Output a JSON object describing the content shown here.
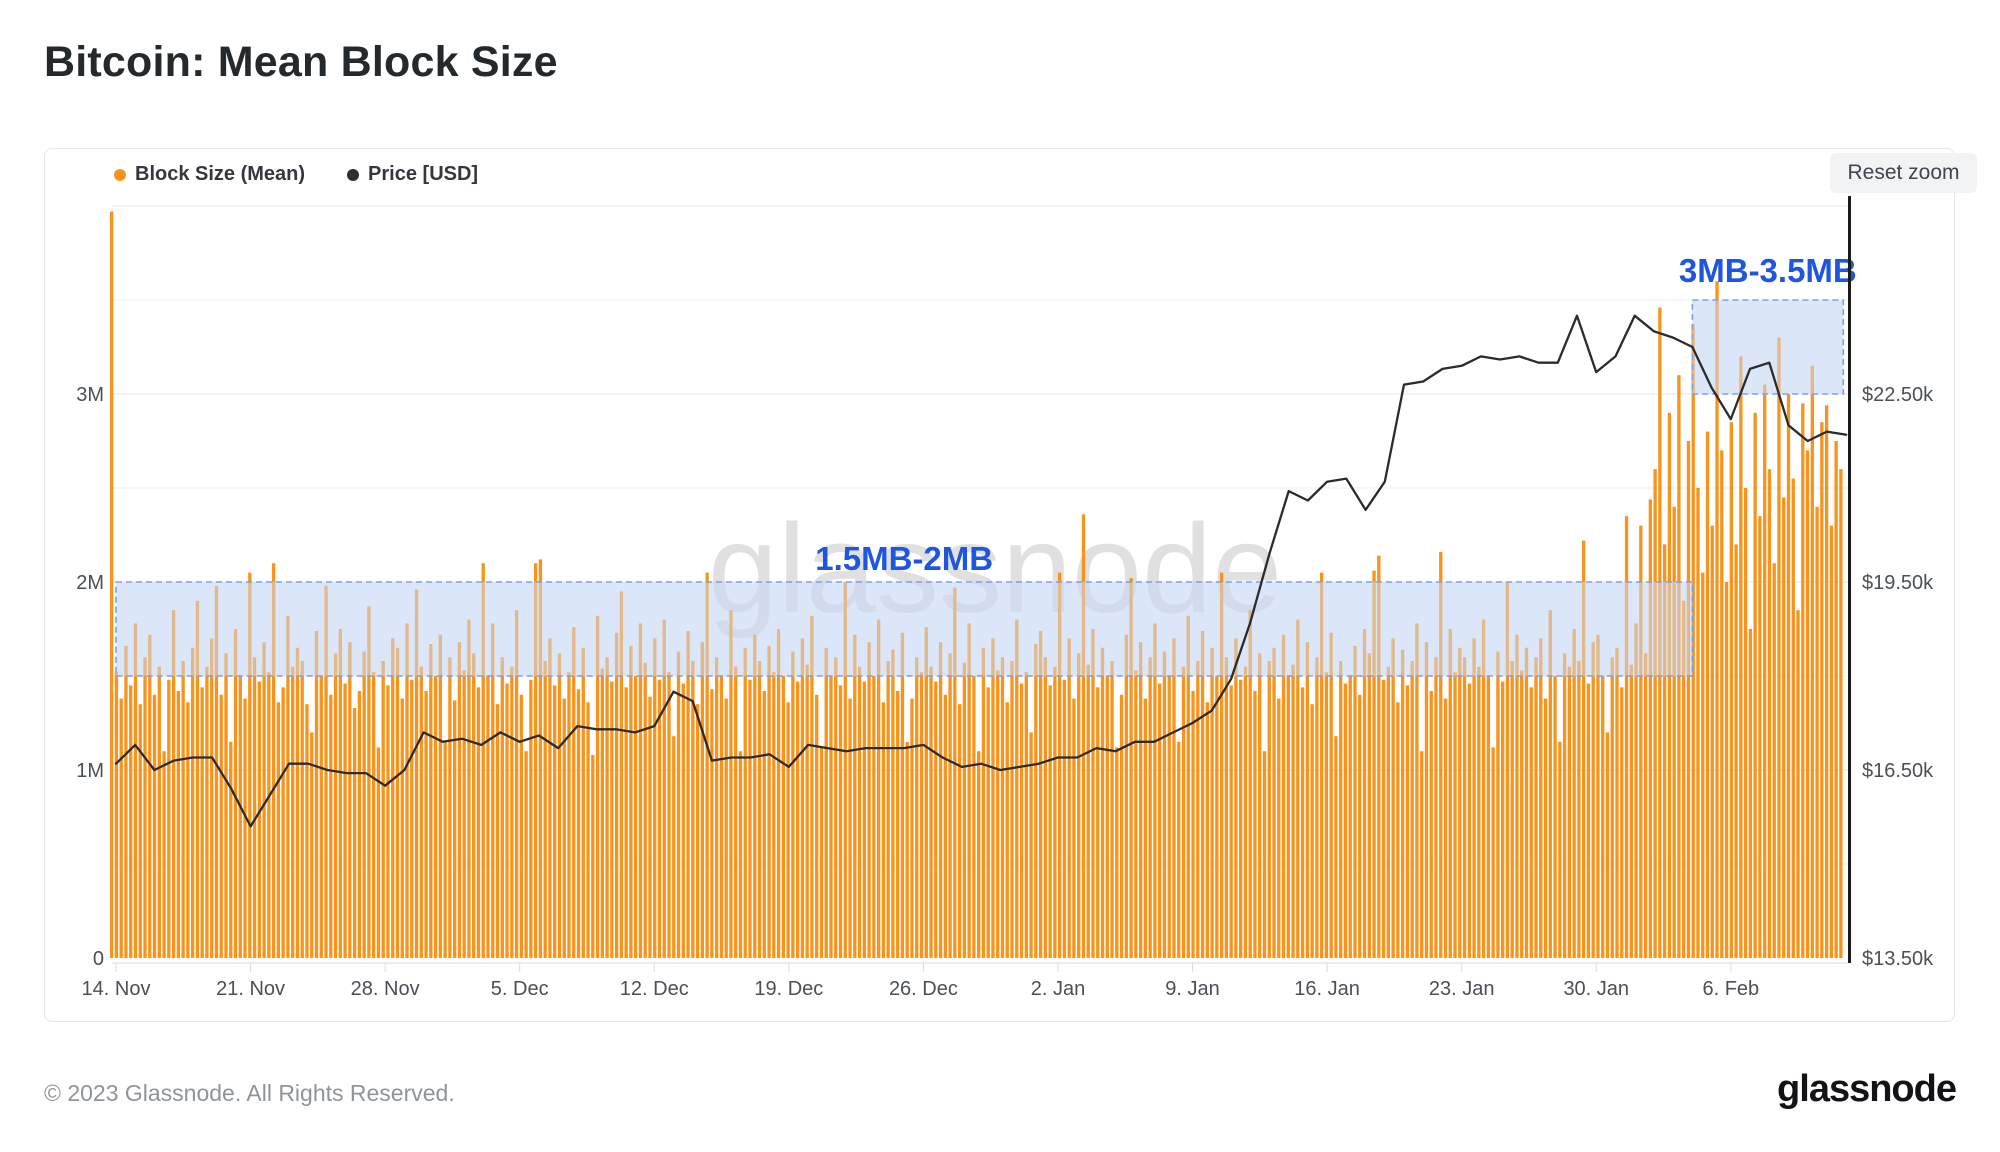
{
  "page": {
    "title": "Bitcoin: Mean Block Size",
    "footer_copyright": "© 2023 Glassnode. All Rights Reserved.",
    "footer_logo": "glassnode"
  },
  "panel": {
    "reset_button_label": "Reset zoom",
    "watermark": "glassnode",
    "legend": [
      {
        "label": "Block Size (Mean)",
        "color": "#f7941e"
      },
      {
        "label": "Price [USD]",
        "color": "#2f2f2f"
      }
    ]
  },
  "chart_data": {
    "type": "mixed",
    "title": "Bitcoin: Mean Block Size",
    "x_range": {
      "start": "14. Nov",
      "end": "12. Feb",
      "days": 91
    },
    "x_ticks": [
      {
        "label": "14. Nov",
        "day": 0
      },
      {
        "label": "21. Nov",
        "day": 7
      },
      {
        "label": "28. Nov",
        "day": 14
      },
      {
        "label": "5. Dec",
        "day": 21
      },
      {
        "label": "12. Dec",
        "day": 28
      },
      {
        "label": "19. Dec",
        "day": 35
      },
      {
        "label": "26. Dec",
        "day": 42
      },
      {
        "label": "2. Jan",
        "day": 49
      },
      {
        "label": "9. Jan",
        "day": 56
      },
      {
        "label": "16. Jan",
        "day": 63
      },
      {
        "label": "23. Jan",
        "day": 70
      },
      {
        "label": "30. Jan",
        "day": 77
      },
      {
        "label": "6. Feb",
        "day": 84
      }
    ],
    "y_left": {
      "unit": "MB",
      "ticks": [
        {
          "label": "0",
          "value": 0
        },
        {
          "label": "1M",
          "value": 1
        },
        {
          "label": "2M",
          "value": 2
        },
        {
          "label": "3M",
          "value": 3
        }
      ],
      "max": 4,
      "gridline_step": 0.5
    },
    "y_right": {
      "unit": "USD",
      "ticks": [
        {
          "label": "$13.50k",
          "value": 13.5
        },
        {
          "label": "$16.50k",
          "value": 16.5
        },
        {
          "label": "$19.50k",
          "value": 19.5
        },
        {
          "label": "$22.50k",
          "value": 22.5
        }
      ],
      "min": 13.5,
      "max": 25.5
    },
    "annotations": [
      {
        "label": "1.5MB-2MB",
        "mb_from": 1.5,
        "mb_to": 2.0,
        "day_from": 0,
        "day_to": 82,
        "fill_under": "#e8eefb",
        "fill_over": "rgba(205,222,248,0.5)",
        "border": "#7aa0ee",
        "label_color": "#1e56e0"
      },
      {
        "label": "3MB-3.5MB",
        "mb_from": 3.0,
        "mb_to": 3.5,
        "day_from": 82,
        "day_to": 89.85,
        "fill_under": "#e8eefb",
        "fill_over": "rgba(205,222,248,0.5)",
        "border": "#7aa0ee",
        "label_color": "#1e56e0"
      }
    ],
    "series": [
      {
        "name": "Block Size (Mean)",
        "type": "column",
        "axis": "left",
        "unit": "MB",
        "color": "#f7941e",
        "samples_per_day": 4,
        "values": [
          3.97,
          1.52,
          1.38,
          1.66,
          1.45,
          1.78,
          1.35,
          1.6,
          1.72,
          1.4,
          1.55,
          1.1,
          1.48,
          1.85,
          1.42,
          1.58,
          1.36,
          1.65,
          1.9,
          1.44,
          1.55,
          1.7,
          1.98,
          1.4,
          1.62,
          1.15,
          1.75,
          1.5,
          1.38,
          2.05,
          1.6,
          1.47,
          1.68,
          1.52,
          2.1,
          1.36,
          1.44,
          1.82,
          1.55,
          1.65,
          1.58,
          1.35,
          1.2,
          1.74,
          1.5,
          1.98,
          1.4,
          1.62,
          1.75,
          1.46,
          1.68,
          1.33,
          1.42,
          1.63,
          1.87,
          1.52,
          1.12,
          1.58,
          1.45,
          1.7,
          1.65,
          1.38,
          1.78,
          1.48,
          1.96,
          1.55,
          1.42,
          1.67,
          1.5,
          1.72,
          1.15,
          1.6,
          1.37,
          1.68,
          1.53,
          1.8,
          1.62,
          1.44,
          2.1,
          1.5,
          1.78,
          1.35,
          1.6,
          1.46,
          1.55,
          1.85,
          1.4,
          1.1,
          1.48,
          2.1,
          2.12,
          1.58,
          1.7,
          1.45,
          1.62,
          1.38,
          1.52,
          1.76,
          1.43,
          1.65,
          1.36,
          1.08,
          1.82,
          1.54,
          1.6,
          1.47,
          1.73,
          1.95,
          1.44,
          1.66,
          1.5,
          1.78,
          1.57,
          1.39,
          1.7,
          1.48,
          1.8,
          1.52,
          1.18,
          1.63,
          1.46,
          1.74,
          1.58,
          1.35,
          1.68,
          2.05,
          1.43,
          1.6,
          1.5,
          1.38,
          1.85,
          1.55,
          1.1,
          1.65,
          1.48,
          1.72,
          1.58,
          1.42,
          1.66,
          1.52,
          1.75,
          1.5,
          1.36,
          1.63,
          1.47,
          1.7,
          1.56,
          1.82,
          1.4,
          1.12,
          1.65,
          1.5,
          1.6,
          1.45,
          2.0,
          1.38,
          1.72,
          1.55,
          1.47,
          1.68,
          1.5,
          1.8,
          1.36,
          1.58,
          1.64,
          1.42,
          1.73,
          1.15,
          1.38,
          1.6,
          1.52,
          1.76,
          1.55,
          1.47,
          1.68,
          1.4,
          1.62,
          1.97,
          1.35,
          1.57,
          1.78,
          1.5,
          1.1,
          1.65,
          1.44,
          1.7,
          1.53,
          1.6,
          1.36,
          1.58,
          1.8,
          1.46,
          1.52,
          1.2,
          1.67,
          1.74,
          1.6,
          1.45,
          1.55,
          2.05,
          1.48,
          1.7,
          1.38,
          1.62,
          2.36,
          1.56,
          1.75,
          1.44,
          1.65,
          1.5,
          1.58,
          1.12,
          1.4,
          1.72,
          2.02,
          1.53,
          1.68,
          1.38,
          1.6,
          1.78,
          1.46,
          1.63,
          1.5,
          1.7,
          1.15,
          1.55,
          1.82,
          1.42,
          1.58,
          1.74,
          1.36,
          1.65,
          1.5,
          2.05,
          1.6,
          1.45,
          1.7,
          1.48,
          1.55,
          1.85,
          1.42,
          1.62,
          1.1,
          1.58,
          1.65,
          1.38,
          1.72,
          1.5,
          1.56,
          1.8,
          1.44,
          1.68,
          1.35,
          1.6,
          2.05,
          1.52,
          1.73,
          1.18,
          1.58,
          1.46,
          1.5,
          1.66,
          1.4,
          1.75,
          1.62,
          2.06,
          2.14,
          1.48,
          1.55,
          1.7,
          1.36,
          1.64,
          1.45,
          1.58,
          1.78,
          1.1,
          1.68,
          1.42,
          1.6,
          2.16,
          1.38,
          1.75,
          1.52,
          1.65,
          1.6,
          1.46,
          1.7,
          1.55,
          1.8,
          1.5,
          1.12,
          1.63,
          1.47,
          2.0,
          1.58,
          1.72,
          1.53,
          1.65,
          1.44,
          1.6,
          1.7,
          1.38,
          1.85,
          1.5,
          1.15,
          1.62,
          1.55,
          1.75,
          1.58,
          2.22,
          1.46,
          1.68,
          1.72,
          1.5,
          1.2,
          1.6,
          1.65,
          1.44,
          2.35,
          1.56,
          1.78,
          2.3,
          1.62,
          2.44,
          2.6,
          3.46,
          2.2,
          2.9,
          2.4,
          3.1,
          1.9,
          2.75,
          3.37,
          2.5,
          2.05,
          2.8,
          2.3,
          3.6,
          2.7,
          2.0,
          2.85,
          2.2,
          3.2,
          2.5,
          1.75,
          2.9,
          2.35,
          3.05,
          2.6,
          2.1,
          3.3,
          2.45,
          3.0,
          2.55,
          1.85,
          2.95,
          2.7,
          3.15,
          2.4,
          2.85,
          2.94,
          2.3,
          2.75,
          2.6
        ]
      },
      {
        "name": "Price [USD]",
        "type": "line",
        "axis": "right",
        "unit": "USD thousands",
        "color": "#2b2b2b",
        "samples_per_day": 1,
        "values": [
          16.6,
          16.9,
          16.5,
          16.65,
          16.7,
          16.7,
          16.2,
          15.6,
          16.1,
          16.6,
          16.6,
          16.5,
          16.45,
          16.45,
          16.25,
          16.5,
          17.1,
          16.95,
          17.0,
          16.9,
          17.1,
          16.95,
          17.05,
          16.85,
          17.2,
          17.15,
          17.15,
          17.1,
          17.2,
          17.75,
          17.6,
          16.65,
          16.7,
          16.7,
          16.75,
          16.55,
          16.9,
          16.85,
          16.8,
          16.85,
          16.85,
          16.85,
          16.9,
          16.7,
          16.55,
          16.6,
          16.5,
          16.55,
          16.6,
          16.7,
          16.7,
          16.85,
          16.8,
          16.95,
          16.95,
          17.1,
          17.25,
          17.45,
          17.95,
          18.85,
          19.95,
          20.95,
          20.8,
          21.1,
          21.15,
          20.65,
          21.1,
          22.65,
          22.7,
          22.9,
          22.95,
          23.1,
          23.05,
          23.1,
          23.0,
          23.0,
          23.75,
          22.85,
          23.1,
          23.75,
          23.5,
          23.4,
          23.25,
          22.6,
          22.1,
          22.9,
          23.0,
          22.0,
          21.75,
          21.9,
          21.85
        ]
      }
    ],
    "legend_position": "top-left",
    "grid": true
  }
}
